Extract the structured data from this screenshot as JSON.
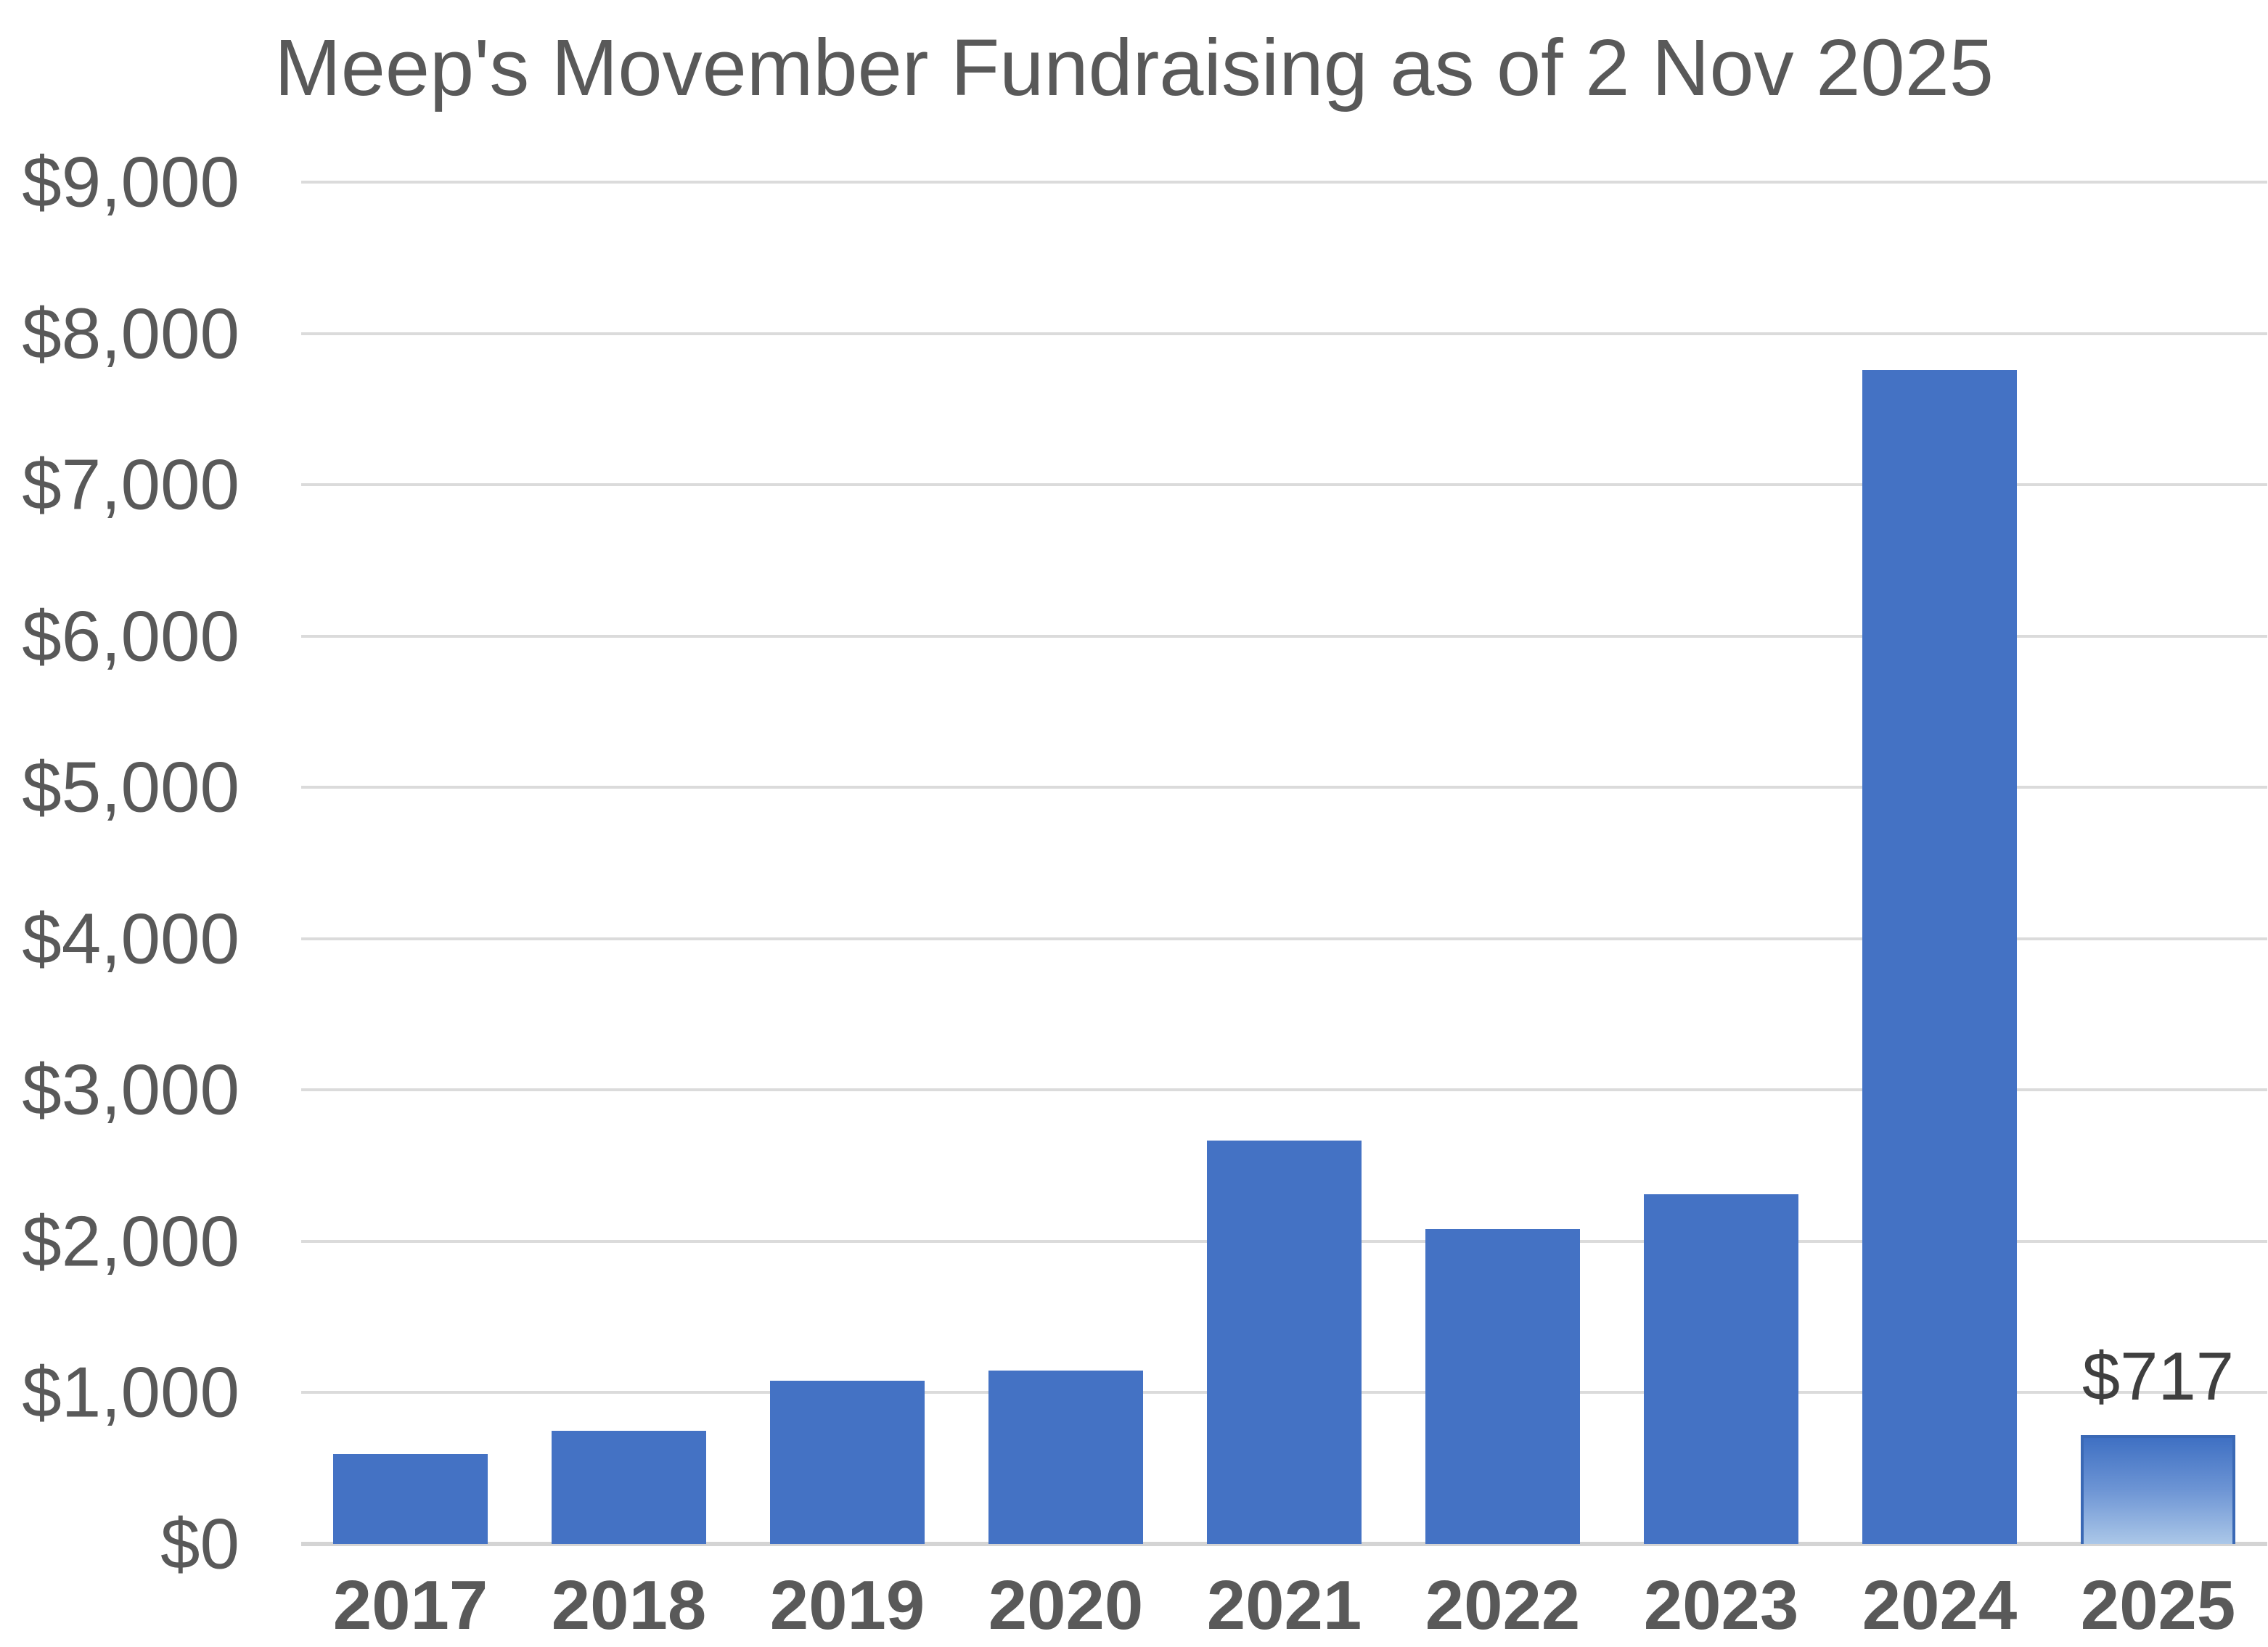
{
  "chart_data": {
    "type": "bar",
    "title": "Meep's Movember Fundraising as of 2 Nov 2025",
    "categories": [
      "2017",
      "2018",
      "2019",
      "2020",
      "2021",
      "2022",
      "2023",
      "2024",
      "2025"
    ],
    "values": [
      595,
      750,
      1080,
      1145,
      2665,
      2080,
      2310,
      7760,
      717
    ],
    "xlabel": "",
    "ylabel": "",
    "ylim": [
      0,
      9000
    ],
    "ytick_step": 1000,
    "ytick_labels": [
      "$0",
      "$1,000",
      "$2,000",
      "$3,000",
      "$4,000",
      "$5,000",
      "$6,000",
      "$7,000",
      "$8,000",
      "$9,000"
    ],
    "grid": true,
    "legend_position": "none",
    "data_labels": [
      {
        "category": "2025",
        "text": "$717"
      }
    ],
    "highlight": {
      "category": "2025",
      "style": "gradient-fill"
    }
  },
  "colors": {
    "bar": "#4472C4",
    "highlight_gradient_top": "#3F70C3",
    "highlight_gradient_bottom": "#ABC7E8",
    "highlight_border": "#3B69B5",
    "gridline": "#DBDBDB",
    "axis_line": "#D4D4D4",
    "axis_text": "#595959",
    "title_text": "#595959",
    "data_label_text": "#3F3F3F",
    "background": "#FFFFFF"
  }
}
